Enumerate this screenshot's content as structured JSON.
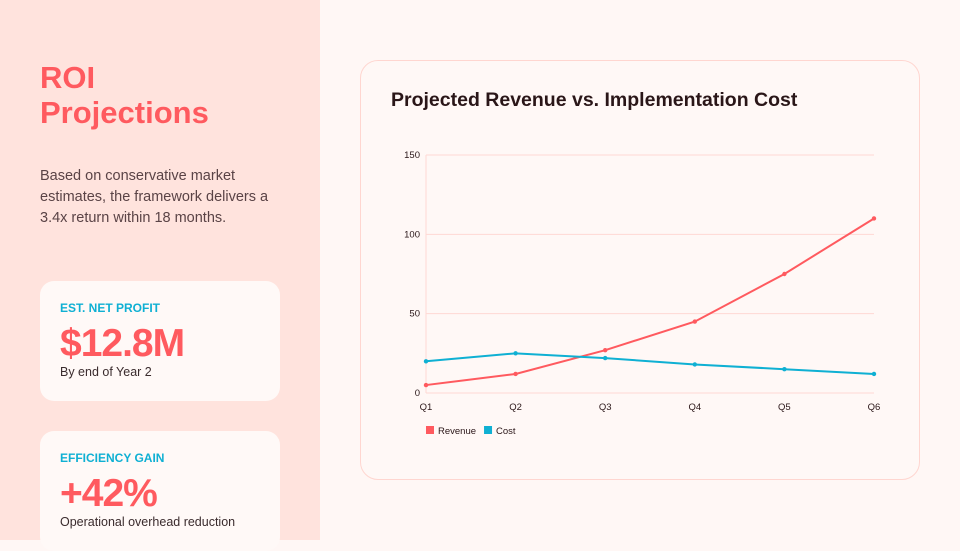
{
  "sidebar": {
    "title_line1": "ROI",
    "title_line2": "Projections",
    "description": "Based on conservative market estimates, the framework delivers a 3.4x return within 18 months.",
    "cards": [
      {
        "label": "EST. NET PROFIT",
        "value": "$12.8M",
        "caption": "By end of Year 2"
      },
      {
        "label": "EFFICIENCY GAIN",
        "value": "+42%",
        "caption": "Operational overhead reduction"
      }
    ]
  },
  "chart_data": {
    "type": "line",
    "title": "Projected Revenue vs. Implementation Cost",
    "categories": [
      "Q1",
      "Q2",
      "Q3",
      "Q4",
      "Q5",
      "Q6"
    ],
    "series": [
      {
        "name": "Revenue",
        "color": "#ff5a5f",
        "values": [
          5,
          12,
          27,
          45,
          75,
          110
        ]
      },
      {
        "name": "Cost",
        "color": "#0fb0d3",
        "values": [
          20,
          25,
          22,
          18,
          15,
          12
        ]
      }
    ],
    "ylim": [
      0,
      150
    ],
    "yticks": [
      "0",
      "50",
      "100",
      "150"
    ],
    "grid": true,
    "legend": "bottom-left"
  }
}
